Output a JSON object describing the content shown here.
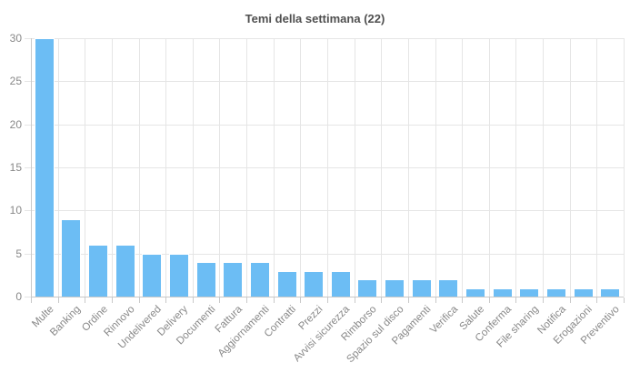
{
  "chart_data": {
    "type": "bar",
    "title": "Temi della settimana (22)",
    "categories": [
      "Multe",
      "Banking",
      "Ordine",
      "Rinnovo",
      "Undelivered",
      "Delivery",
      "Documenti",
      "Fattura",
      "Aggiornamenti",
      "Contratti",
      "Prezzi",
      "Avvisi sicurezza",
      "Rimborso",
      "Spazio sul disco",
      "Pagamenti",
      "Verifica",
      "Salute",
      "Conferma",
      "File sharing",
      "Notifica",
      "Erogazioni",
      "Preventivo"
    ],
    "values": [
      30,
      9,
      6,
      6,
      5,
      5,
      4,
      4,
      4,
      3,
      3,
      3,
      2,
      2,
      2,
      2,
      1,
      1,
      1,
      1,
      1,
      1
    ],
    "xlabel": "",
    "ylabel": "",
    "ylim": [
      0,
      30
    ],
    "yticks": [
      0,
      5,
      10,
      15,
      20,
      25,
      30
    ],
    "grid": true,
    "legend": false,
    "label_rotation": -45,
    "colors": {
      "bar": "#6CBDF4",
      "gridline": "#E5E5E5",
      "axis": "#C9C9C9",
      "tick_label": "#888888",
      "title": "#4F4F4F",
      "background": "#FFFFFF"
    }
  }
}
